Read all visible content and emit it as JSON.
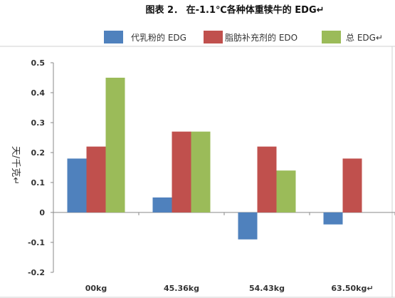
{
  "chart_data": {
    "type": "bar",
    "title": "图表 2． 在-1.1℃各种体重犊牛的 EDG↵",
    "ylabel": "天/千克↵",
    "xlabel": "",
    "categories": [
      "00kg",
      "45.36kg",
      "54.43kg",
      "63.50kg↵"
    ],
    "ylim": [
      -0.2,
      0.5
    ],
    "yticks": [
      -0.2,
      -0.1,
      0,
      0.1,
      0.2,
      0.3,
      0.4,
      0.5
    ],
    "ytick_labels": [
      "-0.2",
      "-0.1",
      "0",
      "0.1",
      "0.2",
      "0.3",
      "0.4",
      "0.5"
    ],
    "grid": false,
    "legend_position": "top-right",
    "series": [
      {
        "name": "代乳粉的 EDG",
        "color": "#4F81BD",
        "values": [
          0.18,
          0.05,
          -0.09,
          -0.04
        ]
      },
      {
        "name": "脂肪补充剂的 EDO",
        "color": "#C0504D",
        "values": [
          0.22,
          0.27,
          0.22,
          0.18
        ]
      },
      {
        "name": "总 EDG↵",
        "color": "#9BBB59",
        "values": [
          0.45,
          0.27,
          0.14,
          null
        ]
      }
    ]
  }
}
